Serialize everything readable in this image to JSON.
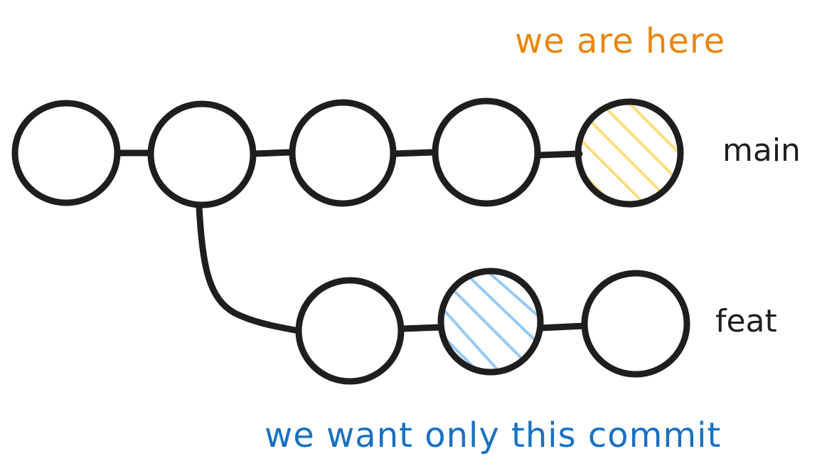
{
  "annotations": {
    "current_position": "we are here",
    "target_commit": "we want only this commit"
  },
  "branches": [
    {
      "name": "main",
      "commits": 5,
      "highlighted_commit": 5,
      "highlight": "current"
    },
    {
      "name": "feat",
      "commits": 3,
      "highlighted_commit": 2,
      "highlight": "target"
    }
  ],
  "colors": {
    "stroke": "#1e1e1e",
    "current_accent": "#e8870f",
    "current_hatch": "#ffd966",
    "target_accent": "#1971c2",
    "target_hatch": "#8cc4f2",
    "background": "#ffffff"
  }
}
